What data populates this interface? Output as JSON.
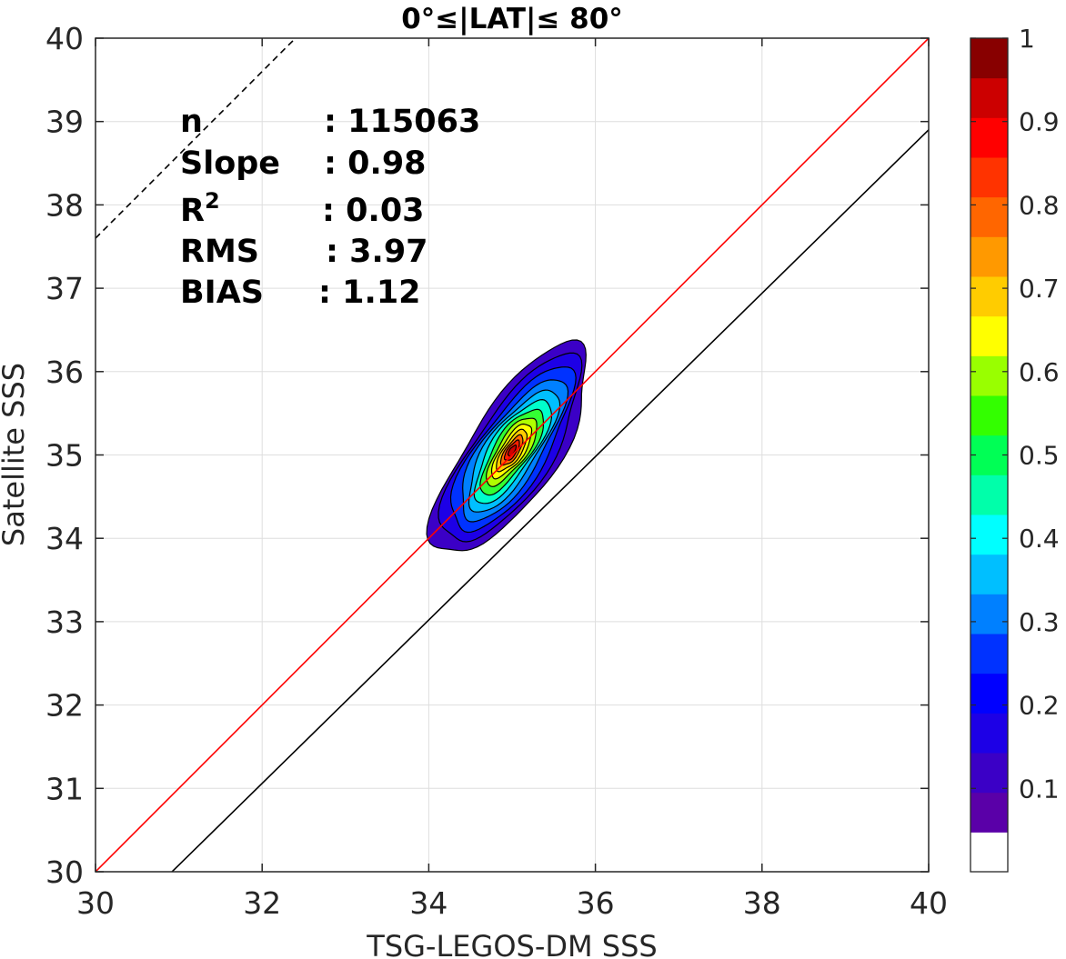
{
  "chart_data": {
    "type": "contour",
    "title": "0°≤|LAT|≤ 80°",
    "xlabel": "TSG-LEGOS-DM SSS",
    "ylabel": "Satellite SSS",
    "xlim": [
      30,
      40
    ],
    "ylim": [
      30,
      40
    ],
    "xticks": [
      "30",
      "32",
      "34",
      "36",
      "38",
      "40"
    ],
    "yticks": [
      "30",
      "31",
      "32",
      "33",
      "34",
      "35",
      "36",
      "37",
      "38",
      "39",
      "40"
    ],
    "grid": true,
    "stats": {
      "n": {
        "label": "n",
        "value": ": 115063"
      },
      "slope": {
        "label": "Slope",
        "value": ": 0.98"
      },
      "r2": {
        "label": "R",
        "sup": "2",
        "value": ": 0.03"
      },
      "rms": {
        "label": "RMS",
        "value": ": 3.97"
      },
      "bias": {
        "label": "BIAS",
        "value": ": 1.12"
      }
    },
    "lines": [
      {
        "name": "identity",
        "color": "#ff0000",
        "style": "solid",
        "slope": 1,
        "intercept": 0
      },
      {
        "name": "regression",
        "color": "#000000",
        "style": "solid",
        "slope": 0.98,
        "intercept": -0.3
      },
      {
        "name": "reference",
        "color": "#000000",
        "style": "dashed",
        "slope": 1,
        "intercept": 7.6
      }
    ],
    "density_center": {
      "x": 35.0,
      "y": 35.05
    },
    "density_orientation_deg": 56,
    "contour_levels": [
      {
        "level": 0.05,
        "color": "#3b00c6",
        "a": 1.48,
        "b": 0.53
      },
      {
        "level": 0.1,
        "color": "#1d00e6",
        "a": 1.32,
        "b": 0.46
      },
      {
        "level": 0.15,
        "color": "#0032ff",
        "a": 1.16,
        "b": 0.4
      },
      {
        "level": 0.2,
        "color": "#0080ff",
        "a": 1.0,
        "b": 0.345
      },
      {
        "level": 0.3,
        "color": "#00bfff",
        "a": 0.86,
        "b": 0.295
      },
      {
        "level": 0.35,
        "color": "#00ffcc",
        "a": 0.73,
        "b": 0.25
      },
      {
        "level": 0.45,
        "color": "#33ff33",
        "a": 0.6,
        "b": 0.21
      },
      {
        "level": 0.55,
        "color": "#b0ff00",
        "a": 0.48,
        "b": 0.17
      },
      {
        "level": 0.6,
        "color": "#ffff00",
        "a": 0.38,
        "b": 0.135
      },
      {
        "level": 0.65,
        "color": "#ffcc00",
        "a": 0.29,
        "b": 0.105
      },
      {
        "level": 0.75,
        "color": "#ff6a00",
        "a": 0.21,
        "b": 0.077
      },
      {
        "level": 0.85,
        "color": "#ff2000",
        "a": 0.14,
        "b": 0.053
      },
      {
        "level": 0.9,
        "color": "#d00000",
        "a": 0.075,
        "b": 0.03
      }
    ],
    "colorbar": {
      "ticks": [
        "0.1",
        "0.2",
        "0.3",
        "0.4",
        "0.5",
        "0.6",
        "0.7",
        "0.8",
        "0.9",
        "1"
      ],
      "colors": [
        "#ffffff",
        "#5a00a8",
        "#3b00c6",
        "#1d00e6",
        "#0000ff",
        "#0032ff",
        "#0080ff",
        "#00bfff",
        "#00ffff",
        "#00ffaa",
        "#00ff55",
        "#33ff00",
        "#99ff00",
        "#ffff00",
        "#ffcc00",
        "#ff9900",
        "#ff6600",
        "#ff3300",
        "#ff0000",
        "#cc0000",
        "#880000"
      ]
    }
  }
}
